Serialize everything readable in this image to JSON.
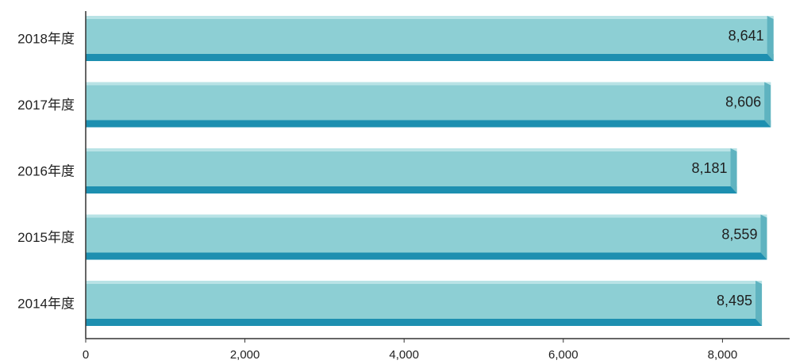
{
  "chart_data": {
    "type": "bar",
    "orientation": "horizontal",
    "categories": [
      "2018年度",
      "2017年度",
      "2016年度",
      "2015年度",
      "2014年度"
    ],
    "values": [
      8641,
      8606,
      8181,
      8559,
      8495
    ],
    "value_labels": [
      "8,641",
      "8,606",
      "8,181",
      "8,559",
      "8,495"
    ],
    "x_ticks": [
      0,
      2000,
      4000,
      6000,
      8000
    ],
    "x_tick_labels": [
      "0",
      "2,000",
      "4,000",
      "6,000",
      "8,000"
    ],
    "xlim": [
      0,
      8700
    ],
    "grid": false,
    "colors": {
      "bar_face": "#8dcfd4",
      "bar_top": "#b9e3e6",
      "bar_bottom": "#1d8fb0",
      "axis": "#333333"
    }
  }
}
